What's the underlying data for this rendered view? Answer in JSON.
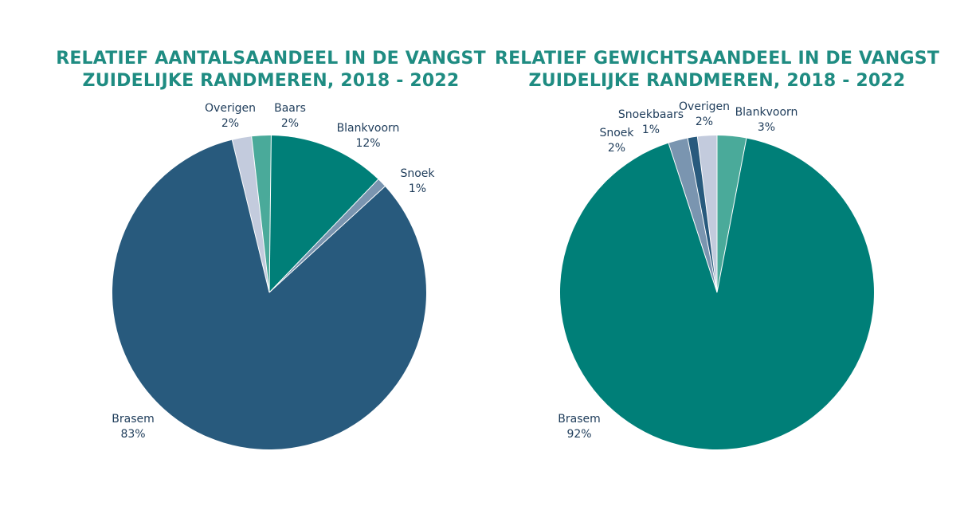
{
  "colors": {
    "title": "#1f8c82",
    "label": "#1e3c5a",
    "Brasem_left": "#285a7d",
    "Brasem_right": "#007f78",
    "Blankvoorn_left": "#007f78",
    "Blankvoorn_right": "#4aaa9a",
    "Baars": "#4aaa9a",
    "Snoek": "#7a95b0",
    "Snoekbaars": "#285a7d",
    "Overigen": "#c3cbdd"
  },
  "chart_data": [
    {
      "type": "pie",
      "title": "RELATIEF AANTALSAANDEEL IN DE VANGST",
      "subtitle": "ZUIDELIJKE RANDMEREN, 2018 - 2022",
      "slices": [
        {
          "name": "Baars",
          "value": 2,
          "label": "2%",
          "color": "#4aaa9a"
        },
        {
          "name": "Blankvoorn",
          "value": 12,
          "label": "12%",
          "color": "#007f78"
        },
        {
          "name": "Snoek",
          "value": 1,
          "label": "1%",
          "color": "#7a95b0"
        },
        {
          "name": "Brasem",
          "value": 83,
          "label": "83%",
          "color": "#285a7d"
        },
        {
          "name": "Overigen",
          "value": 2,
          "label": "2%",
          "color": "#c3cbdd"
        }
      ]
    },
    {
      "type": "pie",
      "title": "RELATIEF GEWICHTSAANDEEL IN DE VANGST",
      "subtitle": "ZUIDELIJKE RANDMEREN, 2018 - 2022",
      "slices": [
        {
          "name": "Blankvoorn",
          "value": 3,
          "label": "3%",
          "color": "#4aaa9a"
        },
        {
          "name": "Brasem",
          "value": 92,
          "label": "92%",
          "color": "#007f78"
        },
        {
          "name": "Snoek",
          "value": 2,
          "label": "2%",
          "color": "#7a95b0"
        },
        {
          "name": "Snoekbaars",
          "value": 1,
          "label": "1%",
          "color": "#285a7d"
        },
        {
          "name": "Overigen",
          "value": 2,
          "label": "2%",
          "color": "#c3cbdd"
        }
      ]
    }
  ]
}
